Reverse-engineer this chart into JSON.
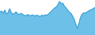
{
  "values": [
    72,
    75,
    68,
    78,
    65,
    70,
    82,
    70,
    65,
    68,
    72,
    66,
    64,
    68,
    65,
    62,
    60,
    64,
    62,
    60,
    63,
    61,
    60,
    62,
    60,
    58,
    62,
    60,
    63,
    62,
    65,
    70,
    75,
    80,
    85,
    88,
    95,
    105,
    98,
    100,
    90,
    85,
    78,
    72,
    68,
    60,
    50,
    35,
    20,
    35,
    55,
    65,
    70,
    68,
    72,
    75,
    78,
    80,
    83,
    86
  ],
  "line_color": "#3ca0d8",
  "fill_color": "#6dc0e8",
  "background_color": "#ffffff",
  "ylim_min": 0,
  "ylim_max": 110,
  "linewidth": 0.7
}
